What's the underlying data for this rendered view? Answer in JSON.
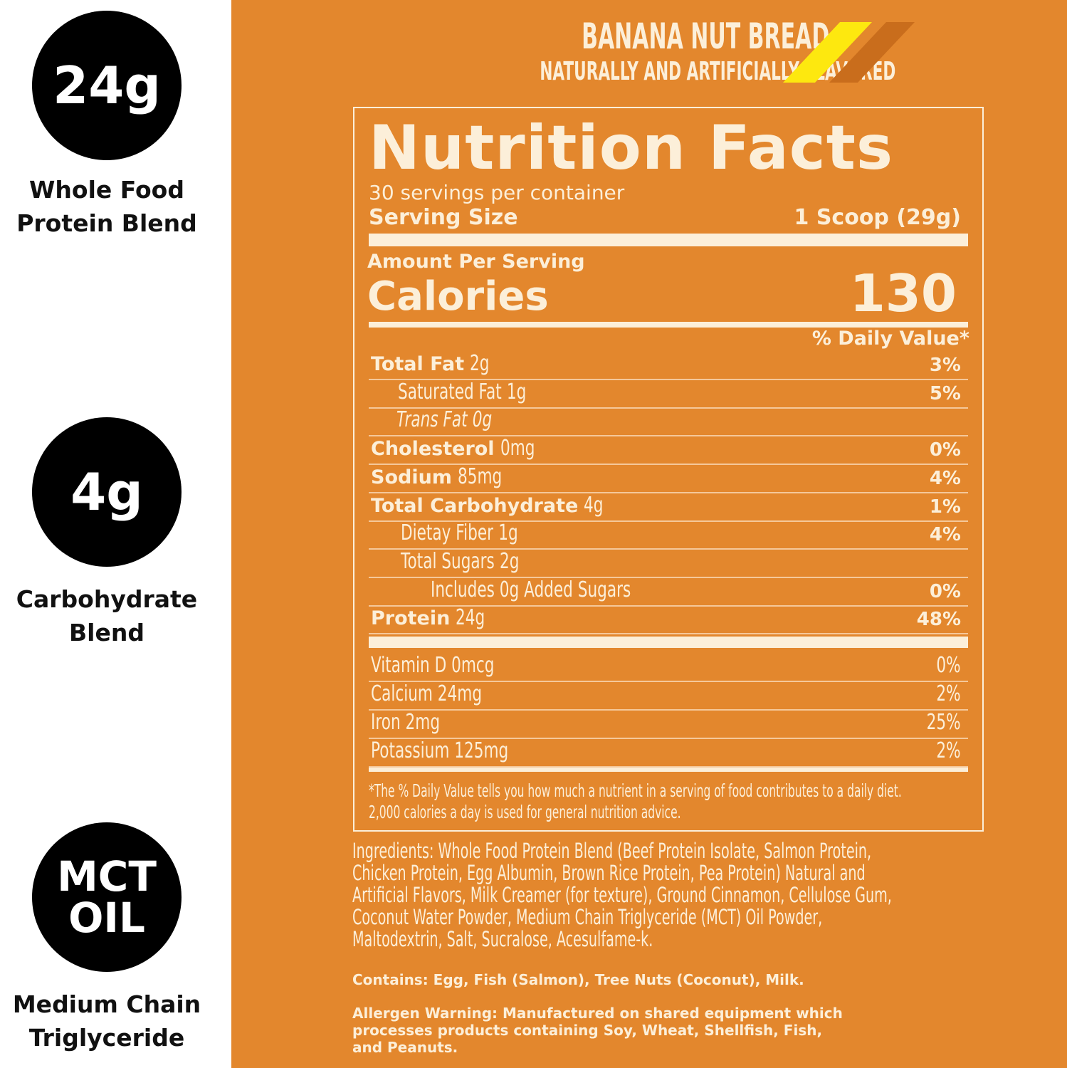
{
  "features": [
    {
      "badge": "24g",
      "label_lines": [
        "Whole Food",
        "Protein Blend"
      ],
      "icon": "protein-badge"
    },
    {
      "badge": "4g",
      "label_lines": [
        "Carbohydrate",
        "Blend"
      ],
      "icon": "carb-badge"
    },
    {
      "badge_lines": [
        "MCT",
        "OIL"
      ],
      "label_lines": [
        "Medium Chain",
        "Triglyceride"
      ],
      "icon": "mct-badge"
    }
  ],
  "header": {
    "flavor": "BANANA NUT BREAD",
    "subtitle": "NATURALLY AND ARTIFICIALLY FLAVORED",
    "stripe_colors": [
      "#fde80f",
      "#c96d1c"
    ]
  },
  "colors": {
    "background": "#e3872d",
    "text": "#fcefd9"
  },
  "label": {
    "title": "Nutrition Facts",
    "servings": "30 servings per container",
    "serving_size_label": "Serving Size",
    "serving_size_value": "1 Scoop (29g)",
    "amount_per_serving": "Amount Per Serving",
    "calories_label": "Calories",
    "calories_value": "130",
    "dv_header": "% Daily Value*",
    "nutrients": [
      {
        "name": "Total Fat",
        "amount": "2g",
        "dv": "3%"
      },
      {
        "name": "Saturated Fat",
        "amount": "1g",
        "dv": "5%"
      },
      {
        "name": "Trans Fat",
        "amount": "0g",
        "dv": ""
      },
      {
        "name": "Cholesterol",
        "amount": "0mg",
        "dv": "0%"
      },
      {
        "name": "Sodium",
        "amount": "85mg",
        "dv": "4%"
      },
      {
        "name": "Total Carbohydrate",
        "amount": "4g",
        "dv": "1%"
      },
      {
        "name": "Dietay Fiber",
        "amount": "1g",
        "dv": "4%"
      },
      {
        "name": "Total Sugars",
        "amount": "2g",
        "dv": ""
      },
      {
        "name": "Includes 0g Added Sugars",
        "amount": "",
        "dv": "0%"
      },
      {
        "name": "Protein",
        "amount": "24g",
        "dv": "48%"
      }
    ],
    "vitamins": [
      {
        "name": "Vitamin D 0mcg",
        "dv": "0%"
      },
      {
        "name": "Calcium 24mg",
        "dv": "2%"
      },
      {
        "name": "Iron 2mg",
        "dv": "25%"
      },
      {
        "name": "Potassium 125mg",
        "dv": "2%"
      }
    ],
    "footnote_lines": [
      "*The % Daily Value tells you how much a nutrient in a serving of food contributes to a daily diet.",
      "2,000 calories a day is used for general nutrition advice."
    ]
  },
  "ingredients_lines": [
    "Ingredients: Whole Food Protein Blend (Beef Protein Isolate, Salmon Protein,",
    "Chicken Protein, Egg Albumin, Brown Rice Protein, Pea Protein) Natural and",
    "Artificial Flavors, Milk Creamer (for texture), Ground Cinnamon, Cellulose Gum,",
    "Coconut Water Powder, Medium Chain Triglyceride (MCT) Oil Powder,",
    "Maltodextrin, Salt, Sucralose, Acesulfame-k."
  ],
  "contains": "Contains: Egg, Fish (Salmon), Tree Nuts (Coconut), Milk.",
  "allergen_lines": [
    "Allergen Warning: Manufactured on shared equipment which",
    "processes products containing Soy, Wheat, Shellfish, Fish,",
    "and Peanuts."
  ]
}
